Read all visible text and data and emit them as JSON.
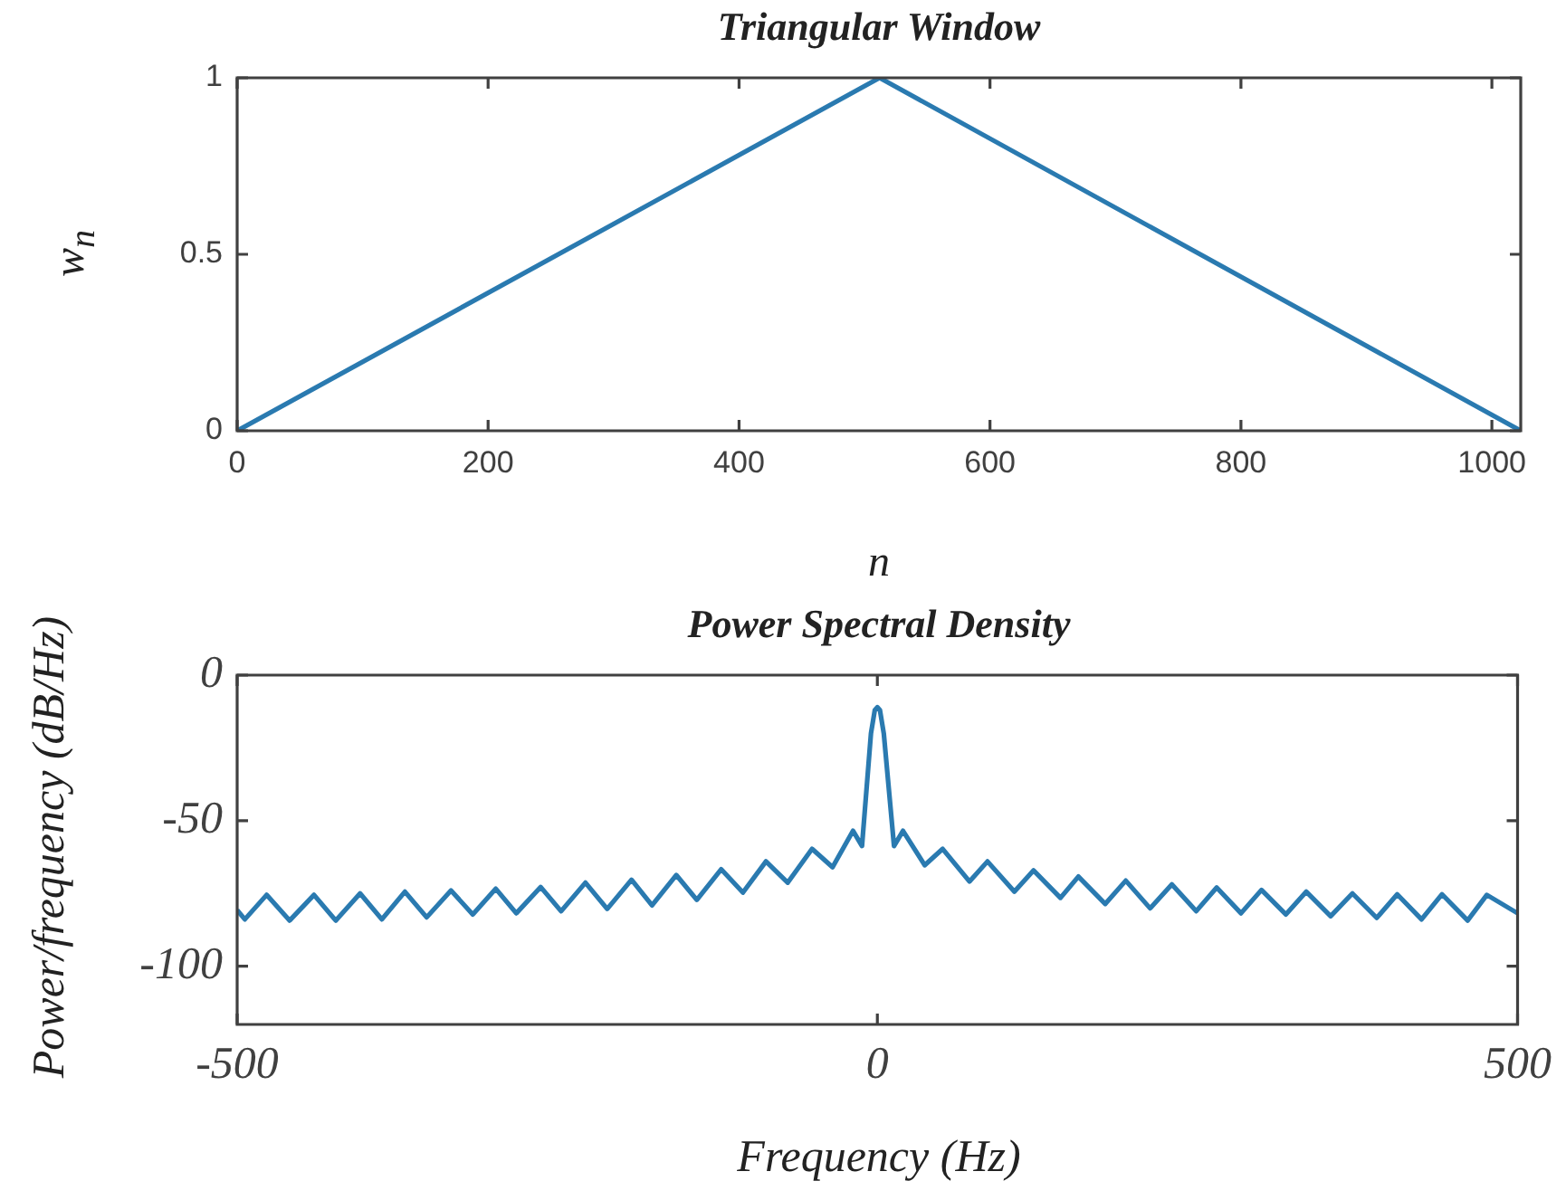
{
  "chart_data": [
    {
      "type": "line",
      "title": "Triangular Window",
      "xlabel": "n",
      "ylabel": "w$_{n}$",
      "color": "#2a7ab0",
      "xlim": [
        0,
        1023
      ],
      "xticks": [
        0,
        200,
        400,
        600,
        800,
        1000
      ],
      "ylim": [
        0,
        1
      ],
      "yticks": [
        0,
        0.5,
        1
      ],
      "grid": false,
      "legend": false,
      "x": [
        0,
        512,
        1023
      ],
      "values": [
        0,
        1,
        0
      ]
    },
    {
      "type": "line",
      "title": "Power Spectral Density",
      "xlabel": "Frequency (Hz)",
      "ylabel": "Power/frequency (dB/Hz)",
      "color": "#2a7ab0",
      "xlim": [
        -500,
        500
      ],
      "xticks": [
        -500,
        0,
        500
      ],
      "ylim": [
        -120,
        0
      ],
      "yticks": [
        0,
        -50,
        -100
      ],
      "grid": false,
      "legend": false,
      "x": [
        -500,
        -494,
        -477,
        -459,
        -440,
        -423,
        -404,
        -387,
        -369,
        -352,
        -333,
        -316,
        -298,
        -282,
        -263,
        -247,
        -228,
        -211,
        -192,
        -176,
        -157,
        -141,
        -122,
        -105,
        -87,
        -70,
        -51,
        -35,
        -19,
        -12,
        -5,
        -2,
        0,
        2,
        5,
        13,
        20,
        37,
        51,
        72,
        86,
        107,
        122,
        143,
        157,
        178,
        194,
        213,
        230,
        249,
        265,
        284,
        300,
        319,
        335,
        354,
        371,
        390,
        406,
        425,
        441,
        461,
        476,
        500
      ],
      "values": [
        -80.7,
        -83.9,
        -75.5,
        -84.3,
        -75.5,
        -84.3,
        -75,
        -83.9,
        -74.4,
        -83.2,
        -74,
        -82.2,
        -73.4,
        -81.8,
        -72.8,
        -81.1,
        -71.3,
        -80.3,
        -70.3,
        -79.1,
        -68.7,
        -77.2,
        -66.7,
        -74.7,
        -64,
        -71.3,
        -59.7,
        -66,
        -53.5,
        -58.7,
        -20,
        -12,
        -11,
        -12,
        -20,
        -58.7,
        -53.5,
        -65.3,
        -59.7,
        -70.9,
        -64,
        -74.4,
        -67.1,
        -76.5,
        -69.2,
        -78.6,
        -70.6,
        -80.1,
        -71.9,
        -81.1,
        -73,
        -81.8,
        -73.8,
        -82.2,
        -74.4,
        -82.8,
        -75,
        -83.4,
        -75.3,
        -83.9,
        -75.3,
        -84.3,
        -75.5,
        -81.8
      ]
    }
  ]
}
